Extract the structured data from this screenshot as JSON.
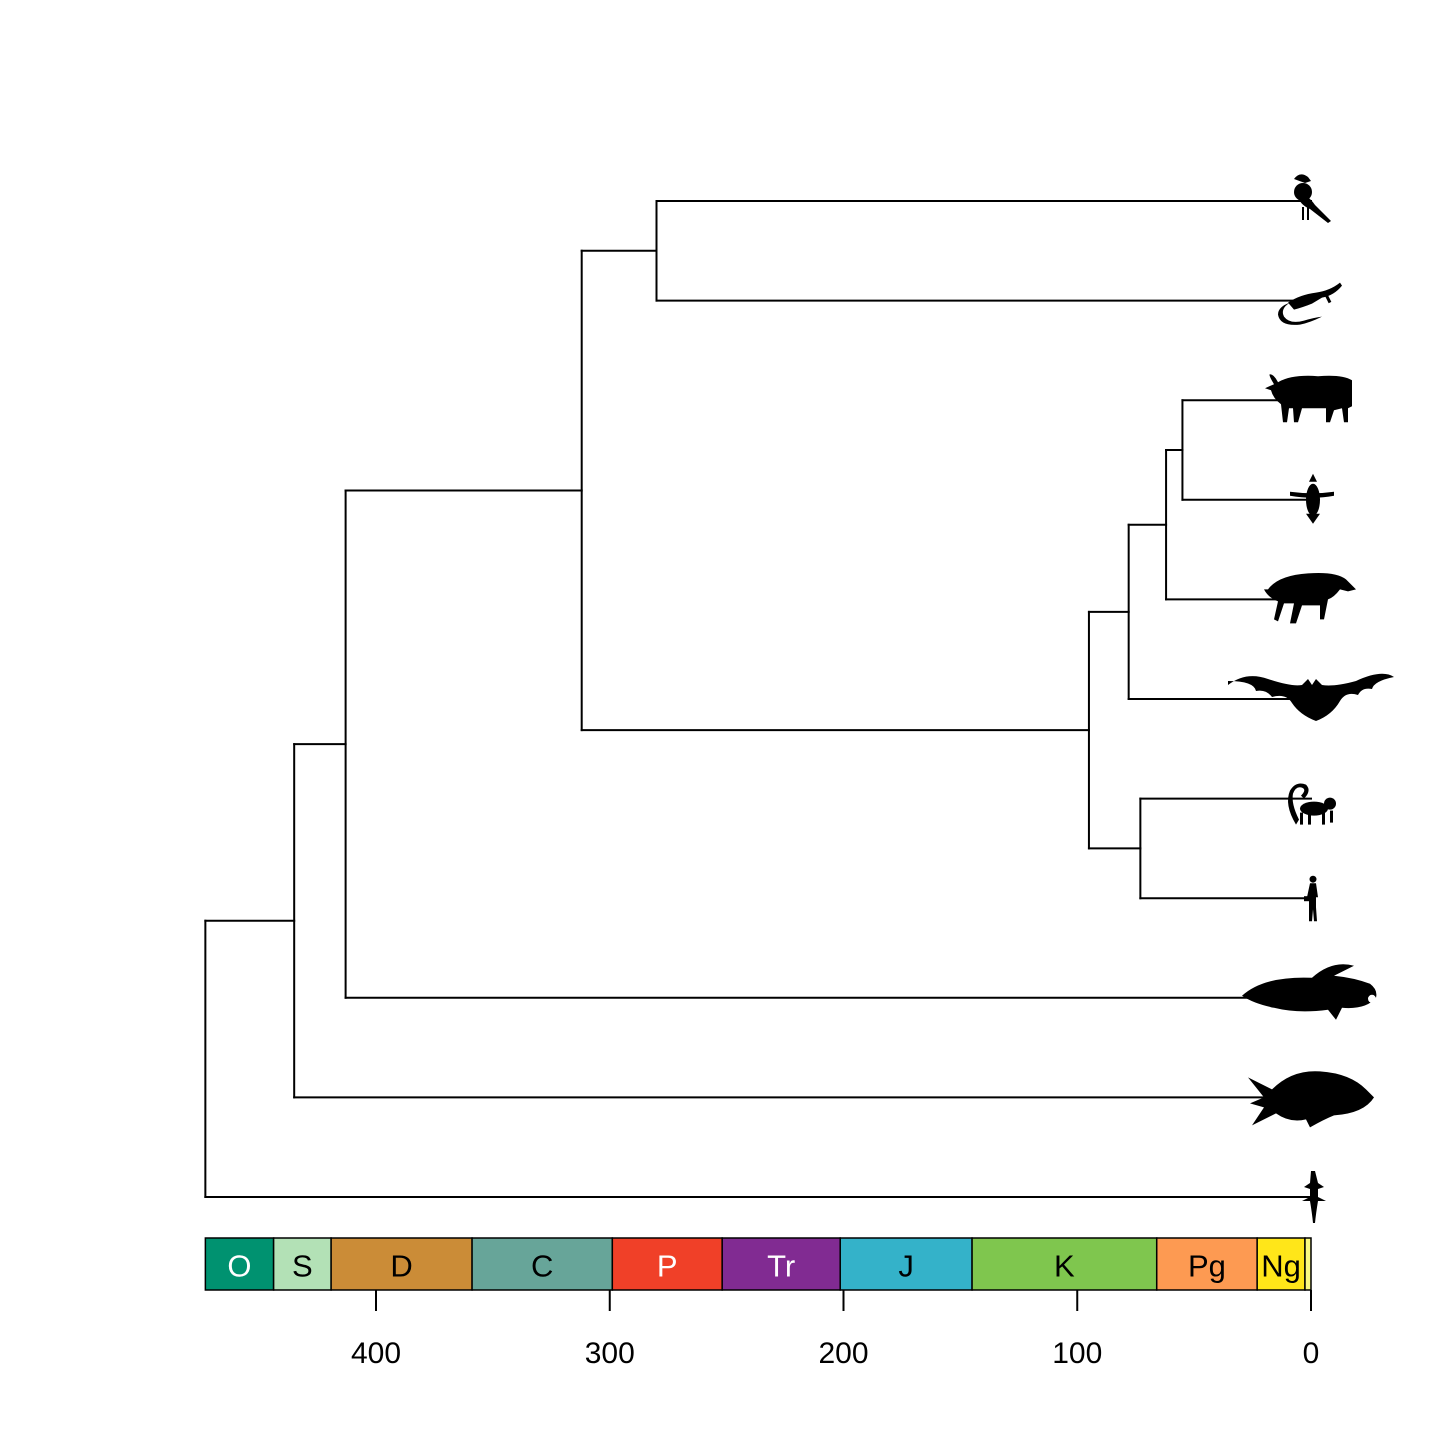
{
  "time_axis": {
    "unit": "Ma",
    "direction": "reversed",
    "range": [
      473,
      0
    ],
    "ticks": [
      {
        "value": 400,
        "label": "400"
      },
      {
        "value": 300,
        "label": "300"
      },
      {
        "value": 200,
        "label": "200"
      },
      {
        "value": 100,
        "label": "100"
      },
      {
        "value": 0,
        "label": "0"
      }
    ]
  },
  "periods": [
    {
      "label": "O",
      "start": 473,
      "end": 443.8,
      "color": "#009270",
      "text_color": "#FFFFFF"
    },
    {
      "label": "S",
      "start": 443.8,
      "end": 419.2,
      "color": "#B3E1B6",
      "text_color": "#000000"
    },
    {
      "label": "D",
      "start": 419.2,
      "end": 358.9,
      "color": "#CB8C37",
      "text_color": "#000000"
    },
    {
      "label": "C",
      "start": 358.9,
      "end": 298.9,
      "color": "#67A599",
      "text_color": "#000000"
    },
    {
      "label": "P",
      "start": 298.9,
      "end": 251.9,
      "color": "#F04028",
      "text_color": "#FFFFFF"
    },
    {
      "label": "Tr",
      "start": 251.9,
      "end": 201.4,
      "color": "#812B92",
      "text_color": "#FFFFFF"
    },
    {
      "label": "J",
      "start": 201.4,
      "end": 145.0,
      "color": "#34B2C9",
      "text_color": "#000000"
    },
    {
      "label": "K",
      "start": 145.0,
      "end": 66.0,
      "color": "#7FC64E",
      "text_color": "#000000"
    },
    {
      "label": "Pg",
      "start": 66.0,
      "end": 23.03,
      "color": "#FD9A52",
      "text_color": "#000000"
    },
    {
      "label": "Ng",
      "start": 23.03,
      "end": 2.58,
      "color": "#FFE619",
      "text_color": "#000000"
    },
    {
      "label": "",
      "start": 2.58,
      "end": 0,
      "color": "#F9F97F",
      "text_color": "#000000"
    }
  ],
  "tips": [
    {
      "id": "bird",
      "icon": "bird-icon"
    },
    {
      "id": "lizard",
      "icon": "lizard-icon"
    },
    {
      "id": "cow",
      "icon": "cow-icon"
    },
    {
      "id": "whale",
      "icon": "whale-icon"
    },
    {
      "id": "boar",
      "icon": "boar-icon"
    },
    {
      "id": "bat",
      "icon": "bat-icon"
    },
    {
      "id": "lemur",
      "icon": "lemur-icon"
    },
    {
      "id": "human",
      "icon": "human-icon"
    },
    {
      "id": "coelacanth",
      "icon": "coelacanth-icon"
    },
    {
      "id": "teleost",
      "icon": "teleost-fish-icon"
    },
    {
      "id": "shark",
      "icon": "shark-icon"
    }
  ],
  "nodes": [
    {
      "id": "n_root",
      "age": 473,
      "children": [
        "n_osteo",
        "shark"
      ]
    },
    {
      "id": "n_osteo",
      "age": 435,
      "children": [
        "n_sarc",
        "teleost"
      ]
    },
    {
      "id": "n_sarc",
      "age": 413,
      "children": [
        "n_tetra",
        "coelacanth"
      ]
    },
    {
      "id": "n_tetra",
      "age": 312,
      "children": [
        "n_sauro",
        "n_mammal"
      ]
    },
    {
      "id": "n_sauro",
      "age": 280,
      "children": [
        "bird",
        "lizard"
      ]
    },
    {
      "id": "n_mammal",
      "age": 95,
      "children": [
        "n_laura",
        "n_primate"
      ]
    },
    {
      "id": "n_laura",
      "age": 78,
      "children": [
        "n_fereuung",
        "bat"
      ]
    },
    {
      "id": "n_fereuung",
      "age": 62,
      "children": [
        "n_cetart",
        "boar"
      ]
    },
    {
      "id": "n_cetart",
      "age": 55,
      "children": [
        "cow",
        "whale"
      ]
    },
    {
      "id": "n_primate",
      "age": 73,
      "children": [
        "lemur",
        "human"
      ]
    }
  ],
  "root": "n_root"
}
